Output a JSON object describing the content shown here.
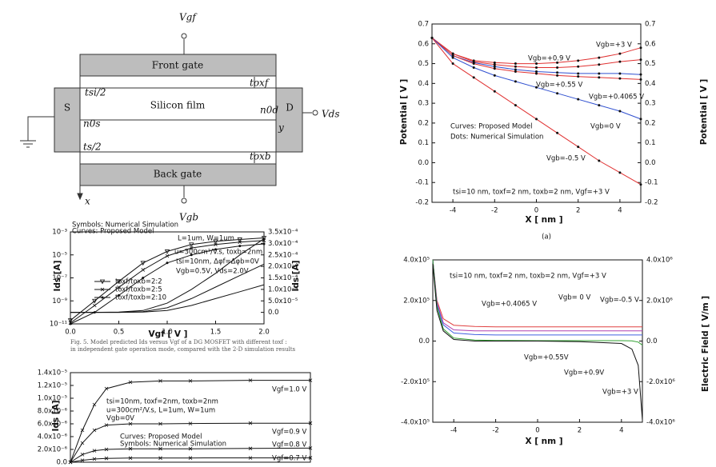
{
  "diagram": {
    "labels": {
      "vgf": "Vgf",
      "front_gate": "Front gate",
      "s": "S",
      "d": "D",
      "silicon_film": "Silicon film",
      "vds": "Vds",
      "tsi_half": "tsi/2",
      "toxf": "toxf",
      "n0s": "n0s",
      "n0d": "n0d",
      "y": "y",
      "ts_half": "ts/2",
      "toxb": "toxb",
      "back_gate": "Back gate",
      "x": "x",
      "vgb": "Vgb"
    }
  },
  "caption": [
    "Fig. 5.    Model predicted Ids versus Vgf of a DG MOSFET with different toxf :",
    "in independent gate operation mode, compared with the 2-D simulation results"
  ],
  "chart_data": [
    {
      "type": "line",
      "xlabel": "X [ nm ]",
      "ylabel": "Potential [ V ]",
      "y2label": "Potential [ V ]",
      "xlim": [
        -5,
        5
      ],
      "xticks": [
        -4,
        -2,
        {
          "value": 0,
          "label": "0"
        },
        2,
        4
      ],
      "ylim": [
        -0.2,
        0.7
      ],
      "yticks": [
        -0.2,
        -0.1,
        {
          "value": 0,
          "label": "0.0"
        },
        0.1,
        0.2,
        0.3,
        0.4,
        0.5,
        0.6,
        0.7
      ],
      "y2lim": [
        -0.2,
        0.7
      ],
      "y2ticks": [
        -0.2,
        -0.1,
        {
          "value": 0,
          "label": "0.0"
        },
        0.1,
        0.2,
        0.3,
        0.4,
        0.5,
        0.6,
        0.7
      ],
      "x": [
        -5,
        -4,
        -3,
        -2,
        -1,
        0,
        1,
        2,
        3,
        4,
        5
      ],
      "series": [
        {
          "color": "#e03030",
          "marker": "circle",
          "values": [
            0.63,
            0.55,
            0.515,
            0.505,
            0.5,
            0.5,
            0.505,
            0.515,
            0.53,
            0.55,
            0.58
          ]
        },
        {
          "color": "#e03030",
          "marker": "circle",
          "values": [
            0.63,
            0.55,
            0.51,
            0.495,
            0.485,
            0.48,
            0.48,
            0.485,
            0.495,
            0.51,
            0.52
          ]
        },
        {
          "color": "#3050d0",
          "marker": "circle",
          "values": [
            0.63,
            0.54,
            0.505,
            0.485,
            0.47,
            0.46,
            0.455,
            0.45,
            0.45,
            0.45,
            0.445
          ]
        },
        {
          "color": "#e03030",
          "marker": "circle",
          "values": [
            0.63,
            0.54,
            0.5,
            0.475,
            0.46,
            0.45,
            0.44,
            0.435,
            0.43,
            0.425,
            0.42
          ]
        },
        {
          "color": "#3050d0",
          "marker": "circle",
          "values": [
            0.63,
            0.53,
            0.48,
            0.44,
            0.41,
            0.38,
            0.35,
            0.32,
            0.29,
            0.26,
            0.22
          ]
        },
        {
          "color": "#e03030",
          "marker": "circle",
          "values": [
            0.63,
            0.5,
            0.43,
            0.36,
            0.29,
            0.22,
            0.15,
            0.08,
            0.01,
            -0.05,
            -0.11
          ]
        }
      ],
      "annotations": [
        "Vgb=+0.9 V",
        "Vgb=+3 V",
        "Vgb=+0.55 V",
        "Vgb=+0.4065 V",
        "Vgb=0 V",
        "Vgb=-0.5 V",
        "Curves: Proposed Model",
        "Dots: Numerical Simulation",
        "tsi=10 nm, toxf=2 nm, toxb=2 nm, Vgf=+3 V",
        "(a)"
      ]
    },
    {
      "type": "line",
      "xlabel": "X [ nm ]",
      "y2label": "Electric Field [ V/m ]",
      "xlim": [
        -5,
        5
      ],
      "xticks": [
        -4,
        -2,
        {
          "value": 0,
          "label": "0"
        },
        2,
        4
      ],
      "ylim": [
        -400000,
        400000
      ],
      "yticks": [
        {
          "value": -400000,
          "label": "-4.0x10⁵"
        },
        {
          "value": -200000,
          "label": "-2.0x10⁵"
        },
        {
          "value": 0,
          "label": "0.0"
        },
        {
          "value": 200000,
          "label": "2.0x10⁵"
        },
        {
          "value": 400000,
          "label": "4.0x10⁵"
        }
      ],
      "y2lim": [
        -4000000,
        4000000
      ],
      "y2ticks": [
        {
          "value": -4000000,
          "label": "-4.0x10⁶"
        },
        {
          "value": -2000000,
          "label": "-2.0x10⁶"
        },
        {
          "value": 0,
          "label": "0.0"
        },
        {
          "value": 2000000,
          "label": "2.0x10⁶"
        },
        {
          "value": 4000000,
          "label": "4.0x10⁶"
        }
      ],
      "x": [
        -5,
        -4.8,
        -4.5,
        -4,
        -3,
        -2,
        0,
        2,
        4,
        4.5,
        4.8,
        5
      ],
      "series": [
        {
          "color": "#e04040",
          "values": [
            400000,
            200000,
            110000,
            78000,
            72000,
            70000,
            70000,
            70000,
            70000,
            70000,
            70000,
            70000
          ]
        },
        {
          "color": "#b040b0",
          "values": [
            400000,
            190000,
            90000,
            55000,
            50000,
            50000,
            50000,
            50000,
            50000,
            50000,
            50000,
            50000
          ]
        },
        {
          "color": "#4060e0",
          "values": [
            400000,
            180000,
            80000,
            40000,
            32000,
            30000,
            30000,
            30000,
            30000,
            30000,
            30000,
            30000
          ]
        },
        {
          "color": "#30a030",
          "values": [
            400000,
            170000,
            60000,
            15000,
            5000,
            3000,
            2000,
            2000,
            2000,
            1000,
            -5000,
            -20000
          ]
        },
        {
          "color": "#111111",
          "values": [
            380000,
            150000,
            50000,
            8000,
            0,
            0,
            0,
            -3000,
            -12000,
            -40000,
            -120000,
            -390000
          ]
        }
      ],
      "annotations": [
        "tsi=10 nm, toxf=2 nm, toxb=2 nm, Vgf=+3 V",
        "Vgb=+0.4065 V",
        "Vgb= 0 V",
        "Vgb=-0.5 V",
        "Vgb=+0.55V",
        "Vgb=+0.9V",
        "Vgb=+3 V"
      ]
    },
    {
      "type": "line",
      "xlabel": "Vgf [ V ]",
      "ylabel": "Ids [A]",
      "y2label": "Ids [A]",
      "ylog": true,
      "xlim": [
        0,
        2
      ],
      "xticks": [
        {
          "value": 0,
          "label": "0.0"
        },
        0.5,
        {
          "value": 1,
          "label": "1.0"
        },
        1.5,
        {
          "value": 2,
          "label": "2.0"
        }
      ],
      "ylim": [
        1e-11,
        0.001
      ],
      "yticks": [
        {
          "value": 1e-11,
          "label": "10⁻¹¹"
        },
        {
          "value": 1e-09,
          "label": "10⁻⁹"
        },
        {
          "value": 1e-07,
          "label": "10⁻⁷"
        },
        {
          "value": 1e-05,
          "label": "10⁻⁵"
        },
        {
          "value": 0.001,
          "label": "10⁻³"
        }
      ],
      "y2lim": [
        -5e-05,
        0.00035
      ],
      "y2ticks": [
        {
          "value": 0,
          "label": "0.0"
        },
        {
          "value": 5e-05,
          "label": "5.0x10⁻⁵"
        },
        {
          "value": 0.0001,
          "label": "1.0x10⁻⁴"
        },
        {
          "value": 0.00015,
          "label": "1.5x10⁻⁴"
        },
        {
          "value": 0.0002,
          "label": "2.0x10⁻⁴"
        },
        {
          "value": 0.00025,
          "label": "2.5x10⁻⁴"
        },
        {
          "value": 0.0003,
          "label": "3.0x10⁻⁴"
        },
        {
          "value": 0.00035,
          "label": "3.5x10⁻⁴"
        }
      ],
      "x": [
        0,
        0.25,
        0.5,
        0.75,
        1,
        1.25,
        1.5,
        1.75,
        2
      ],
      "series": [
        {
          "name": "toxf/toxb=2:2",
          "color": "#111111",
          "marker": "triangle",
          "values": [
            2e-11,
            1e-09,
            5e-08,
            2e-06,
            2e-05,
            8e-05,
            0.00015,
            0.00022,
            0.0003
          ]
        },
        {
          "name": "toxf/toxb=2:5",
          "color": "#111111",
          "marker": "cross",
          "values": [
            1.2e-11,
            4e-10,
            1.5e-08,
            5e-07,
            8e-06,
            4e-05,
            8e-05,
            0.00013,
            0.00018
          ]
        },
        {
          "name": "toxf/toxb=2:10",
          "color": "#111111",
          "marker": "circle",
          "values": [
            1e-11,
            1e-10,
            3e-09,
            1e-07,
            2e-06,
            1e-05,
            3e-05,
            6e-05,
            9e-05
          ]
        },
        {
          "axis": "y2",
          "color": "#111111",
          "values": [
            0,
            0,
            1e-06,
            8e-06,
            4e-05,
            0.0001,
            0.00017,
            0.00025,
            0.00032
          ]
        },
        {
          "axis": "y2",
          "color": "#111111",
          "values": [
            0,
            0,
            0,
            3e-06,
            2e-05,
            6e-05,
            0.00011,
            0.00016,
            0.00021
          ]
        },
        {
          "axis": "y2",
          "color": "#111111",
          "values": [
            0,
            0,
            0,
            1e-06,
            8e-06,
            3e-05,
            6e-05,
            9e-05,
            0.00012
          ]
        }
      ],
      "annotations": [
        "Symbols: Numerical Simulation",
        "Curves: Proposed Model",
        "L=1um, W=1um",
        "u=300cm²/V.s, toxb=2nm",
        "tsi=10nm, Δφf=Δφb=0V",
        "Vgb=0.5V, Vds=2.0V"
      ]
    },
    {
      "type": "line",
      "ylabel": "Ids [A]",
      "xlim": [
        0,
        2
      ],
      "ylim": [
        0,
        1.4e-05
      ],
      "yticks": [
        {
          "value": 0,
          "label": "0.0"
        },
        {
          "value": 2e-06,
          "label": "2.0x10⁻⁶"
        },
        {
          "value": 4e-06,
          "label": "4.0x10⁻⁶"
        },
        {
          "value": 6e-06,
          "label": "6.0x10⁻⁶"
        },
        {
          "value": 8e-06,
          "label": "8.0x10⁻⁶"
        },
        {
          "value": 1e-05,
          "label": "1.0x10⁻⁵"
        },
        {
          "value": 1.2e-05,
          "label": "1.2x10⁻⁵"
        },
        {
          "value": 1.4e-05,
          "label": "1.4x10⁻⁵"
        }
      ],
      "x": [
        0,
        0.1,
        0.2,
        0.3,
        0.5,
        0.75,
        1,
        1.5,
        2
      ],
      "series": [
        {
          "color": "#111111",
          "marker": "cross",
          "values": [
            0,
            5e-06,
            9e-06,
            1.15e-05,
            1.25e-05,
            1.27e-05,
            1.27e-05,
            1.28e-05,
            1.28e-05
          ]
        },
        {
          "color": "#111111",
          "marker": "cross",
          "values": [
            0,
            3e-06,
            5e-06,
            5.8e-06,
            6e-06,
            6e-06,
            6.05e-06,
            6.1e-06,
            6.1e-06
          ]
        },
        {
          "color": "#111111",
          "marker": "cross",
          "values": [
            0,
            1.2e-06,
            1.8e-06,
            2e-06,
            2.1e-06,
            2.1e-06,
            2.1e-06,
            2.15e-06,
            2.2e-06
          ]
        },
        {
          "color": "#111111",
          "marker": "cross",
          "values": [
            0,
            3e-07,
            5e-07,
            6e-07,
            6.5e-07,
            6.5e-07,
            6.6e-07,
            6.7e-07,
            6.8e-07
          ]
        }
      ],
      "annotations": [
        "tsi=10nm, toxf=2nm, toxb=2nm",
        "u=300cm²/V.s, L=1um, W=1um",
        "Vgb=0V",
        "Curves: Proposed Model",
        "Symbols: Numerical Simulation",
        "Vgf=1.0 V",
        "Vgf=0.9 V",
        "Vgf=0.8 V",
        "Vgf=0.7 V"
      ]
    }
  ]
}
